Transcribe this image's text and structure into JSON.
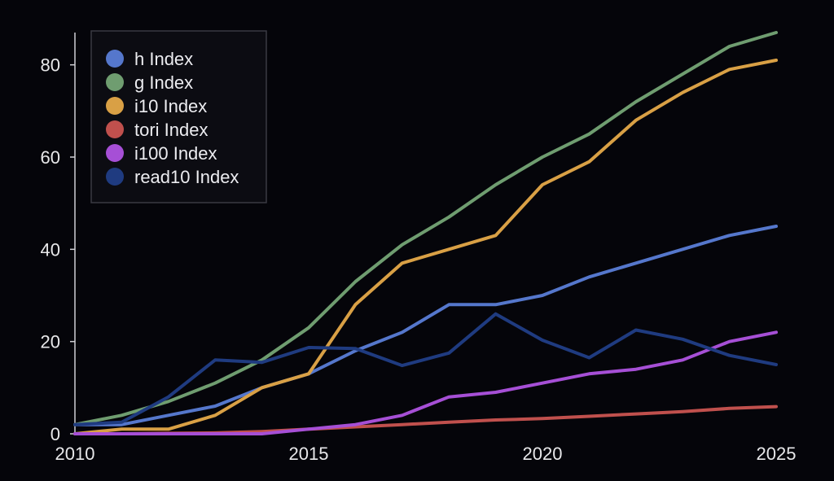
{
  "chart_data": {
    "type": "line",
    "title": "",
    "xlabel": "",
    "ylabel": "",
    "xlim": [
      2010,
      2025
    ],
    "ylim": [
      0,
      87
    ],
    "x_ticks": [
      2010,
      2015,
      2020,
      2025
    ],
    "y_ticks": [
      0,
      20,
      40,
      60,
      80
    ],
    "grid": false,
    "legend_position": "top-left",
    "x": [
      2010,
      2011,
      2012,
      2013,
      2014,
      2015,
      2016,
      2017,
      2018,
      2019,
      2020,
      2021,
      2022,
      2023,
      2024,
      2025
    ],
    "series": [
      {
        "name": "h Index",
        "color": "#5577cc",
        "values": [
          2,
          2,
          4,
          6,
          10,
          13,
          18,
          22,
          28,
          28,
          30,
          34,
          37,
          40,
          43,
          45
        ]
      },
      {
        "name": "g Index",
        "color": "#6f9d70",
        "values": [
          2,
          4,
          7,
          11,
          16,
          23,
          33,
          41,
          47,
          54,
          60,
          65,
          72,
          78,
          84,
          87
        ]
      },
      {
        "name": "i10 Index",
        "color": "#d9a045",
        "values": [
          0,
          1,
          1,
          4,
          10,
          13,
          28,
          37,
          40,
          43,
          54,
          59,
          68,
          74,
          79,
          81
        ]
      },
      {
        "name": "tori Index",
        "color": "#c0504d",
        "values": [
          0,
          0,
          0.1,
          0.2,
          0.5,
          1,
          1.5,
          2,
          2.5,
          3,
          3.3,
          3.8,
          4.3,
          4.8,
          5.5,
          5.9
        ]
      },
      {
        "name": "i100 Index",
        "color": "#a64fd6",
        "values": [
          0,
          0,
          0,
          0,
          0,
          1,
          2,
          4,
          8,
          9,
          11,
          13,
          14,
          16,
          20,
          22
        ]
      },
      {
        "name": "read10 Index",
        "color": "#1f3b80",
        "values": [
          2,
          2.5,
          8,
          16,
          15.5,
          18.7,
          18.5,
          14.8,
          17.5,
          26,
          20.3,
          16.5,
          22.5,
          20.5,
          17,
          15
        ]
      }
    ]
  }
}
